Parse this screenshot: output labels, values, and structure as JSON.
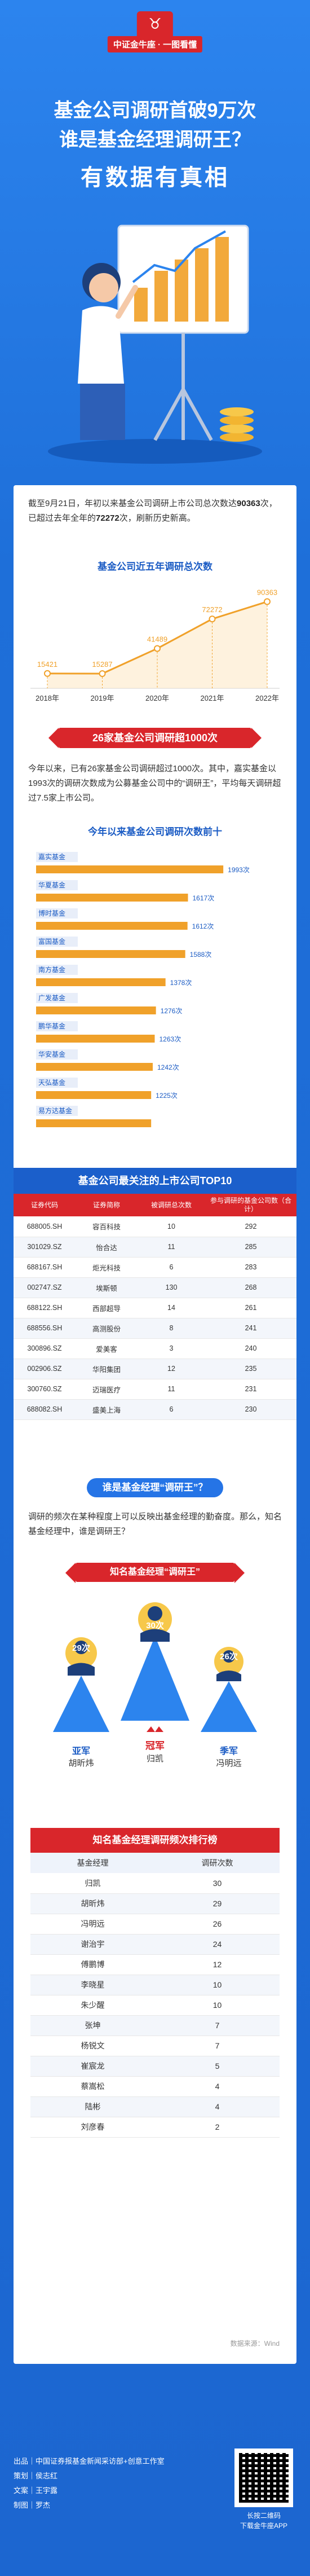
{
  "brand": {
    "logo_text": "中证金牛座 · 一图看懂"
  },
  "hero": {
    "title_line1": "基金公司调研首破9万次",
    "title_line2": "谁是基金经理调研王？",
    "title_line3": "有数据有真相"
  },
  "intro": {
    "p1": "截至9月21日，年初以来基金公司调研上市公司总次数达",
    "num1": "90363",
    "p2": "次，已超过去年全年的",
    "num2": "72272",
    "p3": "次，刷新历史新高。"
  },
  "line_chart": {
    "title": "基金公司近五年调研总次数",
    "chart_data": {
      "type": "line",
      "categories": [
        "2018年",
        "2019年",
        "2020年",
        "2021年",
        "2022年"
      ],
      "values": [
        15421,
        15287,
        41489,
        72272,
        90363
      ],
      "labels": [
        "15421",
        "15287",
        "41489",
        "72272",
        "90363"
      ]
    }
  },
  "section2": {
    "banner": "26家基金公司调研超1000次",
    "text": "今年以来，已有26家基金公司调研超过1000次。其中，嘉实基金以1993次的调研次数成为公募基金公司中的“调研王”，平均每天调研超过7.5家上市公司。"
  },
  "hbar_chart": {
    "title": "今年以来基金公司调研次数前十",
    "chart_data": {
      "type": "bar",
      "categories": [
        "嘉实基金",
        "华夏基金",
        "博时基金",
        "富国基金",
        "南方基金",
        "广发基金",
        "鹏华基金",
        "华安基金",
        "天弘基金",
        "易方达基金"
      ],
      "values": [
        1993,
        1617,
        1612,
        1588,
        1378,
        1276,
        1263,
        1242,
        1225,
        1225
      ],
      "labels": [
        "1993次",
        "1617次",
        "1612次",
        "1588次",
        "1378次",
        "1276次",
        "1263次",
        "1242次",
        "1225次",
        ""
      ]
    }
  },
  "table1": {
    "title": "基金公司最关注的上市公司TOP10",
    "headers": [
      "证券代码",
      "证券简称",
      "被调研总次数",
      "参与调研的基金公司数（合计）"
    ],
    "rows": [
      [
        "688005.SH",
        "容百科技",
        "10",
        "292"
      ],
      [
        "301029.SZ",
        "怡合达",
        "11",
        "285"
      ],
      [
        "688167.SH",
        "炬光科技",
        "6",
        "283"
      ],
      [
        "002747.SZ",
        "埃斯顿",
        "130",
        "268"
      ],
      [
        "688122.SH",
        "西部超导",
        "14",
        "261"
      ],
      [
        "688556.SH",
        "高测股份",
        "8",
        "241"
      ],
      [
        "300896.SZ",
        "爱美客",
        "3",
        "240"
      ],
      [
        "002906.SZ",
        "华阳集团",
        "12",
        "235"
      ],
      [
        "300760.SZ",
        "迈瑞医疗",
        "11",
        "231"
      ],
      [
        "688082.SH",
        "盛美上海",
        "6",
        "230"
      ]
    ]
  },
  "section3": {
    "banner": "谁是基金经理“调研王”？",
    "text": "调研的频次在某种程度上可以反映出基金经理的勤奋度。那么，知名基金经理中，谁是调研王？"
  },
  "podium": {
    "title": "知名基金经理“调研王”",
    "first": {
      "count": "30次",
      "rank": "冠军",
      "name": "归凯"
    },
    "second": {
      "count": "29次",
      "rank": "亚军",
      "name": "胡昕炜"
    },
    "third": {
      "count": "26次",
      "rank": "季军",
      "name": "冯明远"
    }
  },
  "table2": {
    "title": "知名基金经理调研频次排行榜",
    "headers": [
      "基金经理",
      "调研次数"
    ],
    "rows": [
      [
        "归凯",
        "30"
      ],
      [
        "胡昕炜",
        "29"
      ],
      [
        "冯明远",
        "26"
      ],
      [
        "谢治宇",
        "24"
      ],
      [
        "傅鹏博",
        "12"
      ],
      [
        "李晓星",
        "10"
      ],
      [
        "朱少醒",
        "10"
      ],
      [
        "张坤",
        "7"
      ],
      [
        "杨锐文",
        "7"
      ],
      [
        "崔宸龙",
        "5"
      ],
      [
        "蔡嵩松",
        "4"
      ],
      [
        "陆彬",
        "4"
      ],
      [
        "刘彦春",
        "2"
      ]
    ]
  },
  "source": "数据来源：Wind",
  "footer": {
    "credit1": "出品｜中国证券报基金新闻采访部+创意工作室",
    "credit2": "策划｜侯志红",
    "credit3": "文案｜王宇露",
    "credit4": "制图｜罗杰",
    "qr_caption1": "长按二维码",
    "qr_caption2": "下载金牛座APP"
  },
  "colors": {
    "primary_blue": "#1e6fd9",
    "accent_red": "#d9262b",
    "bar_orange": "#f0a12a",
    "line_orange": "#f0a12a"
  }
}
